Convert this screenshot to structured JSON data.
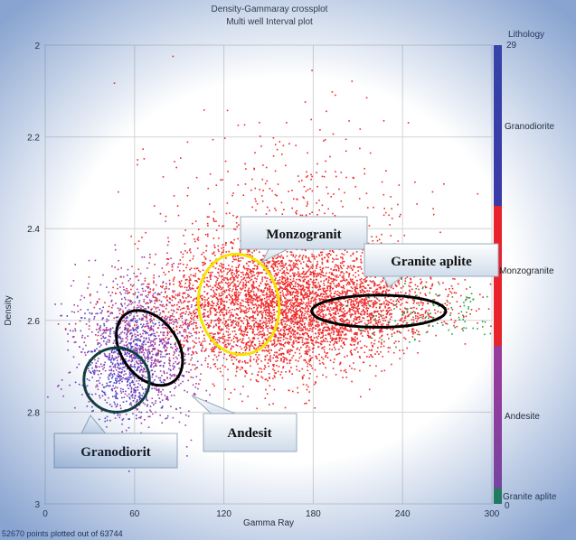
{
  "chart_data": {
    "type": "scatter",
    "title": "Density-Gammaray crossplot",
    "subtitle": "Multi well Interval plot",
    "xlabel": "Gamma Ray",
    "ylabel": "Density",
    "xlim": [
      0,
      300
    ],
    "ylim": [
      2,
      3
    ],
    "y_inverted": true,
    "x_ticks": [
      "0",
      "60",
      "120",
      "180",
      "240",
      "300"
    ],
    "y_ticks": [
      "2",
      "2.2",
      "2.4",
      "2.6",
      "2.8",
      "3"
    ],
    "grid": true,
    "legend": {
      "title": "Lithology",
      "top_value": "29",
      "bottom_value": "0",
      "entries": [
        {
          "name": "Granodiorite",
          "color": "#3a3aa8"
        },
        {
          "name": "Monzogranite",
          "color": "#e8232b"
        },
        {
          "name": "Andesite",
          "color": "#9b3a9b"
        },
        {
          "name": "Granite aplite",
          "color": "#1f8a3a"
        }
      ]
    },
    "series": [
      {
        "name": "Monzogranite",
        "color": "#ee2a2a",
        "cluster": {
          "cx": 150,
          "cy": 2.57,
          "sx": 55,
          "sy": 0.06,
          "n": 5200
        }
      },
      {
        "name": "Andesite",
        "color": "#9a3fa8",
        "cluster": {
          "cx": 65,
          "cy": 2.66,
          "sx": 22,
          "sy": 0.07,
          "n": 1100
        }
      },
      {
        "name": "Granodiorite",
        "color": "#4848c8",
        "cluster": {
          "cx": 55,
          "cy": 2.7,
          "sx": 15,
          "sy": 0.06,
          "n": 500
        }
      },
      {
        "name": "Granite aplite",
        "color": "#22a040",
        "cluster": {
          "cx": 260,
          "cy": 2.58,
          "sx": 25,
          "sy": 0.03,
          "n": 120
        }
      }
    ],
    "annotations": {
      "ellipses": [
        {
          "label": "Monzogranit",
          "cx": 130,
          "cy": 2.565,
          "rx": 27,
          "ry": 0.11,
          "color": "#f5e400"
        },
        {
          "label": "Granite aplite",
          "cx": 224,
          "cy": 2.58,
          "rx": 45,
          "ry": 0.035,
          "color": "#000000"
        },
        {
          "label": "Andesit",
          "cx": 70,
          "cy": 2.66,
          "rx": 19,
          "ry": 0.09,
          "color": "#000000"
        },
        {
          "label": "Granodiorit",
          "cx": 48,
          "cy": 2.73,
          "rx": 22,
          "ry": 0.07,
          "color": "#123c3c"
        }
      ],
      "callouts": [
        "Monzogranit",
        "Granite aplite",
        "Andesit",
        "Granodiorit"
      ]
    },
    "footer": "52670 points plotted out of 63744"
  }
}
